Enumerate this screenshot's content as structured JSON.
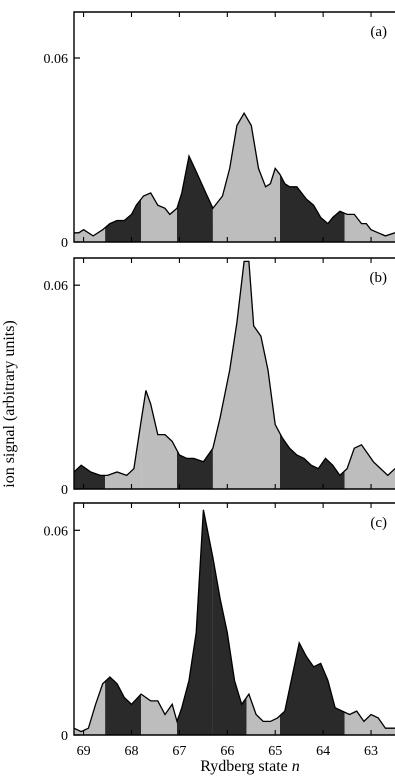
{
  "figure": {
    "ylabel": "ion signal (arbitrary units)",
    "xlabel_text": "Rydberg state ",
    "xlabel_var": "n"
  },
  "chart_data": [
    {
      "type": "area",
      "panel_label": "(a)",
      "xlim": [
        69.2,
        62.5
      ],
      "ylim": [
        0,
        0.075
      ],
      "yticks": [
        0,
        0.06
      ],
      "yticklabels": [
        "0",
        "0.06"
      ],
      "x_reversed": true,
      "x": [
        69.2,
        69.1,
        69.0,
        68.8,
        68.6,
        68.45,
        68.3,
        68.15,
        68.0,
        67.9,
        67.75,
        67.6,
        67.45,
        67.3,
        67.2,
        67.05,
        66.95,
        66.8,
        66.65,
        66.45,
        66.3,
        66.1,
        65.95,
        65.8,
        65.65,
        65.5,
        65.35,
        65.2,
        65.1,
        65.0,
        64.9,
        64.8,
        64.7,
        64.55,
        64.45,
        64.35,
        64.2,
        64.05,
        63.9,
        63.8,
        63.65,
        63.5,
        63.35,
        63.2,
        63.1,
        63.0,
        62.85,
        62.7,
        62.5
      ],
      "y": [
        0.003,
        0.003,
        0.004,
        0.002,
        0.004,
        0.006,
        0.007,
        0.007,
        0.009,
        0.012,
        0.015,
        0.016,
        0.012,
        0.011,
        0.009,
        0.011,
        0.016,
        0.028,
        0.023,
        0.016,
        0.011,
        0.015,
        0.024,
        0.038,
        0.042,
        0.038,
        0.024,
        0.018,
        0.019,
        0.024,
        0.022,
        0.019,
        0.018,
        0.018,
        0.016,
        0.014,
        0.012,
        0.008,
        0.006,
        0.008,
        0.01,
        0.009,
        0.009,
        0.006,
        0.006,
        0.004,
        0.003,
        0.002,
        0.003
      ],
      "bands": [
        {
          "from": 69.2,
          "to": 68.55,
          "shade": "light"
        },
        {
          "from": 68.55,
          "to": 67.8,
          "shade": "dark"
        },
        {
          "from": 67.8,
          "to": 67.05,
          "shade": "light"
        },
        {
          "from": 67.05,
          "to": 66.3,
          "shade": "dark"
        },
        {
          "from": 66.3,
          "to": 64.9,
          "shade": "light"
        },
        {
          "from": 64.9,
          "to": 63.55,
          "shade": "dark"
        },
        {
          "from": 63.55,
          "to": 62.5,
          "shade": "light"
        }
      ]
    },
    {
      "type": "area",
      "panel_label": "(b)",
      "xlim": [
        69.2,
        62.5
      ],
      "ylim": [
        0,
        0.068
      ],
      "yticks": [
        0,
        0.06
      ],
      "yticklabels": [
        "0",
        "0.06"
      ],
      "x_reversed": true,
      "x": [
        69.2,
        69.05,
        68.85,
        68.65,
        68.5,
        68.3,
        68.1,
        67.95,
        67.8,
        67.7,
        67.6,
        67.45,
        67.3,
        67.15,
        67.0,
        66.85,
        66.7,
        66.5,
        66.3,
        66.15,
        65.95,
        65.8,
        65.65,
        65.55,
        65.45,
        65.3,
        65.15,
        65.0,
        64.85,
        64.7,
        64.55,
        64.4,
        64.25,
        64.1,
        63.95,
        63.8,
        63.65,
        63.5,
        63.35,
        63.2,
        63.1,
        62.95,
        62.8,
        62.65,
        62.5
      ],
      "y": [
        0.005,
        0.007,
        0.005,
        0.004,
        0.004,
        0.005,
        0.004,
        0.006,
        0.02,
        0.029,
        0.025,
        0.016,
        0.016,
        0.014,
        0.01,
        0.009,
        0.009,
        0.008,
        0.012,
        0.021,
        0.035,
        0.049,
        0.067,
        0.067,
        0.048,
        0.045,
        0.035,
        0.019,
        0.015,
        0.012,
        0.01,
        0.009,
        0.007,
        0.006,
        0.009,
        0.007,
        0.004,
        0.006,
        0.012,
        0.013,
        0.011,
        0.008,
        0.006,
        0.004,
        0.006
      ],
      "bands": [
        {
          "from": 69.2,
          "to": 68.55,
          "shade": "dark"
        },
        {
          "from": 68.55,
          "to": 67.8,
          "shade": "light"
        },
        {
          "from": 67.8,
          "to": 67.05,
          "shade": "light"
        },
        {
          "from": 67.05,
          "to": 66.3,
          "shade": "dark"
        },
        {
          "from": 66.3,
          "to": 64.9,
          "shade": "light"
        },
        {
          "from": 64.9,
          "to": 63.55,
          "shade": "dark"
        },
        {
          "from": 63.55,
          "to": 62.5,
          "shade": "light"
        }
      ]
    },
    {
      "type": "area",
      "panel_label": "(c)",
      "xlim": [
        69.2,
        62.5
      ],
      "ylim": [
        0,
        0.068
      ],
      "yticks": [
        0,
        0.06
      ],
      "yticklabels": [
        "0",
        "0.06"
      ],
      "xticks": [
        69,
        68,
        67,
        66,
        65,
        64,
        63
      ],
      "xticklabels": [
        "69",
        "68",
        "67",
        "66",
        "65",
        "64",
        "63"
      ],
      "x_reversed": true,
      "x": [
        69.2,
        69.05,
        68.9,
        68.75,
        68.6,
        68.45,
        68.3,
        68.15,
        68.0,
        67.8,
        67.6,
        67.45,
        67.3,
        67.15,
        67.05,
        66.95,
        66.8,
        66.65,
        66.5,
        66.3,
        66.15,
        66.0,
        65.85,
        65.7,
        65.55,
        65.4,
        65.25,
        65.1,
        64.95,
        64.8,
        64.65,
        64.5,
        64.35,
        64.2,
        64.05,
        63.9,
        63.75,
        63.6,
        63.45,
        63.3,
        63.15,
        63.0,
        62.85,
        62.7,
        62.5
      ],
      "y": [
        0.002,
        0.001,
        0.002,
        0.009,
        0.015,
        0.017,
        0.015,
        0.011,
        0.009,
        0.012,
        0.01,
        0.01,
        0.006,
        0.009,
        0.004,
        0.008,
        0.016,
        0.03,
        0.066,
        0.052,
        0.04,
        0.03,
        0.016,
        0.009,
        0.012,
        0.006,
        0.004,
        0.004,
        0.005,
        0.007,
        0.017,
        0.027,
        0.023,
        0.02,
        0.021,
        0.016,
        0.008,
        0.007,
        0.006,
        0.007,
        0.004,
        0.006,
        0.005,
        0.002,
        0.002
      ],
      "bands": [
        {
          "from": 69.2,
          "to": 68.55,
          "shade": "light"
        },
        {
          "from": 68.55,
          "to": 67.8,
          "shade": "dark"
        },
        {
          "from": 67.8,
          "to": 67.05,
          "shade": "light"
        },
        {
          "from": 67.05,
          "to": 66.3,
          "shade": "dark"
        },
        {
          "from": 66.3,
          "to": 65.6,
          "shade": "dark"
        },
        {
          "from": 65.6,
          "to": 64.9,
          "shade": "light"
        },
        {
          "from": 64.9,
          "to": 63.55,
          "shade": "dark"
        },
        {
          "from": 63.55,
          "to": 62.5,
          "shade": "light"
        }
      ]
    }
  ],
  "colors": {
    "dark_fill": "#2a2a2a",
    "light_fill": "#bdbdbd",
    "line": "#000000"
  }
}
